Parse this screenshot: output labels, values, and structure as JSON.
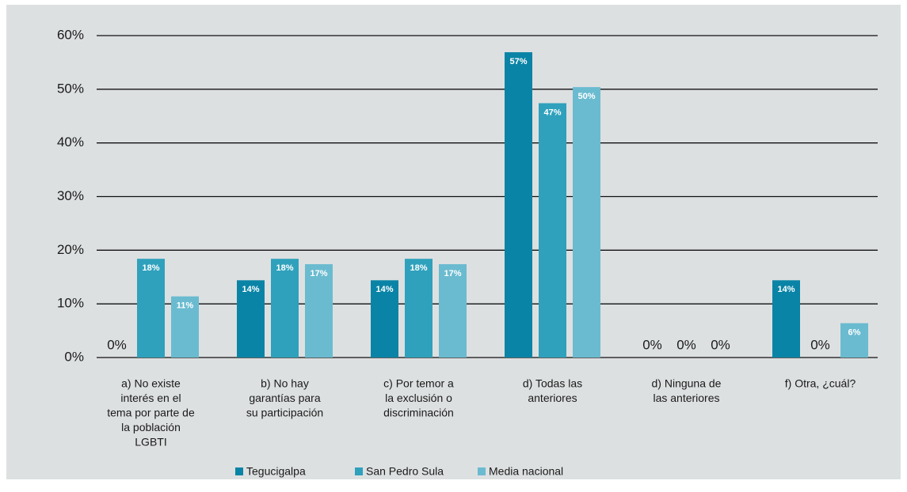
{
  "chart_data": {
    "type": "bar",
    "categories": [
      [
        "a) No existe",
        "interés en el",
        "tema por parte de",
        "la población",
        "LGBTI"
      ],
      [
        "b) No hay",
        "garantías para",
        "su participación"
      ],
      [
        "c) Por temor a",
        "la exclusión o",
        "discriminación"
      ],
      [
        "d) Todas las",
        "anteriores"
      ],
      [
        "d) Ninguna de",
        "las anteriores"
      ],
      [
        "f) Otra, ¿cuál?"
      ]
    ],
    "series": [
      {
        "name": "Tegucigalpa",
        "color": "#0a84a6",
        "values": [
          0,
          14.4,
          14.4,
          56.9,
          0,
          14.4
        ],
        "value_labels": [
          "0%",
          "14%",
          "14%",
          "57%",
          "0%",
          "14%"
        ]
      },
      {
        "name": "San Pedro Sula",
        "color": "#2fa1bc",
        "values": [
          18.4,
          18.4,
          18.4,
          47.4,
          0,
          0
        ],
        "value_labels": [
          "18%",
          "18%",
          "18%",
          "47%",
          "0%",
          "0%"
        ]
      },
      {
        "name": "Media nacional",
        "color": "#6abbd0",
        "values": [
          11.4,
          17.4,
          17.4,
          50.4,
          0,
          6.4
        ],
        "value_labels": [
          "11%",
          "17%",
          "17%",
          "50%",
          "0%",
          "6%"
        ]
      }
    ],
    "ylim": [
      0,
      60
    ],
    "yticks": [
      {
        "value": 0,
        "label": "0%"
      },
      {
        "value": 10,
        "label": "10%"
      },
      {
        "value": 20,
        "label": "20%"
      },
      {
        "value": 30,
        "label": "30%"
      },
      {
        "value": 40,
        "label": "40%"
      },
      {
        "value": 50,
        "label": "50%"
      },
      {
        "value": 60,
        "label": "60%"
      }
    ],
    "grid": true,
    "legend": "bottom"
  }
}
